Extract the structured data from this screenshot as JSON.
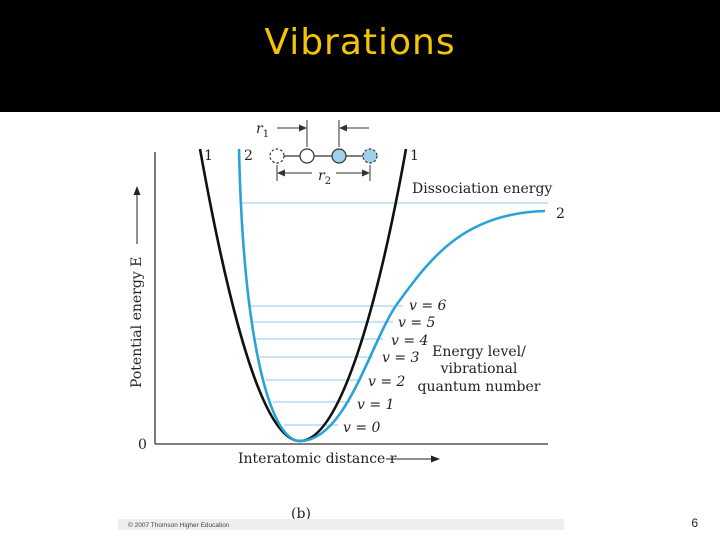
{
  "slide": {
    "title": "Vibrations",
    "page_number": "6"
  },
  "figure": {
    "axis": {
      "y_label": "Potential energy E",
      "x_label": "Interatomic distance r",
      "origin": "0"
    },
    "curves": {
      "black_label_left": "1",
      "black_label_right": "1",
      "blue_label_left": "2",
      "blue_label_right": "2"
    },
    "dissociation_label": "Dissociation energy",
    "levels": [
      "v = 0",
      "v = 1",
      "v = 2",
      "v = 3",
      "v = 4",
      "v = 5",
      "v = 6"
    ],
    "energy_note": [
      "Energy level/",
      "vibrational",
      "quantum number"
    ],
    "molecule": {
      "r1": "r",
      "r1_sub": "1",
      "r2": "r",
      "r2_sub": "2"
    },
    "panel_label": "(b)",
    "copyright": "© 2007 Thomson Higher Education"
  },
  "colors": {
    "title": "#f5c400",
    "blue_curve": "#29a3d6",
    "black_curve": "#111111",
    "level_lines": "#8fc9e4",
    "atom_fill": "#9fd0ec"
  }
}
